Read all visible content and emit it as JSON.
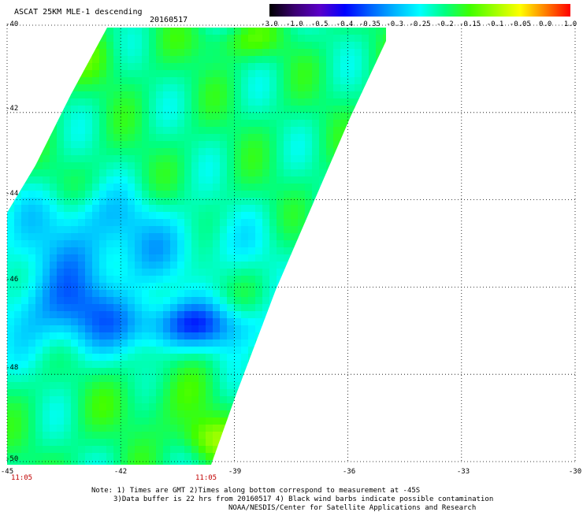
{
  "title": "ASCAT 25KM MLE-1 descending",
  "date": "20160517",
  "colorbar": {
    "labels": [
      "-3.0",
      "-1.0",
      "-0.5",
      "-0.4",
      "-0.35",
      "-0.3",
      "-0.25",
      "-0.2",
      "-0.15",
      "-0.1",
      "-0.05",
      "0.0",
      "1.0"
    ],
    "colors": [
      "#000000",
      "#3a0070",
      "#5a00c8",
      "#0000ff",
      "#0060ff",
      "#00b4ff",
      "#00ffff",
      "#00ff80",
      "#40ff00",
      "#a0ff00",
      "#ffff00",
      "#ff8000",
      "#ff0000"
    ]
  },
  "latitudes": [
    "-40",
    "-42",
    "-44",
    "-46",
    "-48",
    "-50"
  ],
  "longitudes": [
    "-45",
    "-42",
    "-39",
    "-36",
    "-33",
    "-30"
  ],
  "times": [
    "11:05",
    "11:05"
  ],
  "notes": {
    "line1": "Note: 1) Times are GMT 2)Times along bottom correspond to measurement at -45S",
    "line2": "3)Data buffer is 22 hrs from 20160517 4) Black wind barbs indicate possible contamination",
    "line3": "NOAA/NESDIS/Center for Satellite Applications and Research"
  }
}
